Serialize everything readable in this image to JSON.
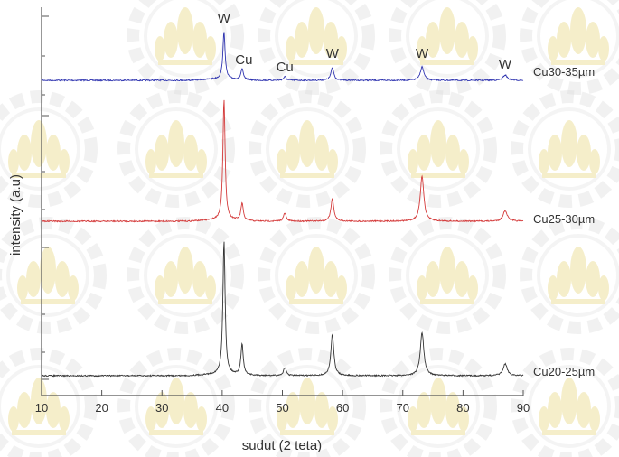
{
  "chart_data": {
    "type": "line",
    "title": "",
    "xlabel": "sudut (2 teta)",
    "ylabel": "intensity (a.u)",
    "xlim": [
      10,
      90
    ],
    "x_ticks": [
      "10",
      "20",
      "30",
      "40",
      "50",
      "60",
      "70",
      "80",
      "90"
    ],
    "y_tick_labels_shown": false,
    "grid": false,
    "legend": "inline-right",
    "colors": {
      "axis": "#555555",
      "watermark": "#e3d06a"
    },
    "series": [
      {
        "name": "Cu30-35µm",
        "color": "#2f34b0",
        "peaks": [
          {
            "x": 40.3,
            "height": 52
          },
          {
            "x": 43.3,
            "height": 12
          },
          {
            "x": 50.4,
            "height": 4
          },
          {
            "x": 58.3,
            "height": 14
          },
          {
            "x": 73.2,
            "height": 15
          },
          {
            "x": 87.0,
            "height": 6
          }
        ]
      },
      {
        "name": "Cu25-30µm",
        "color": "#d43a3a",
        "peaks": [
          {
            "x": 40.3,
            "height": 133
          },
          {
            "x": 43.3,
            "height": 19
          },
          {
            "x": 50.4,
            "height": 9
          },
          {
            "x": 58.3,
            "height": 25
          },
          {
            "x": 73.2,
            "height": 50
          },
          {
            "x": 87.0,
            "height": 12
          }
        ]
      },
      {
        "name": "Cu20-25µm",
        "color": "#333333",
        "peaks": [
          {
            "x": 40.3,
            "height": 148
          },
          {
            "x": 43.3,
            "height": 34
          },
          {
            "x": 50.4,
            "height": 9
          },
          {
            "x": 58.3,
            "height": 46
          },
          {
            "x": 73.2,
            "height": 48
          },
          {
            "x": 87.0,
            "height": 13
          }
        ]
      }
    ],
    "annotations": [
      {
        "text": "W",
        "x": 40.3
      },
      {
        "text": "Cu",
        "x": 43.3
      },
      {
        "text": "Cu",
        "x": 50.4
      },
      {
        "text": "W",
        "x": 58.3
      },
      {
        "text": "W",
        "x": 73.2
      },
      {
        "text": "W",
        "x": 87.0
      }
    ]
  }
}
